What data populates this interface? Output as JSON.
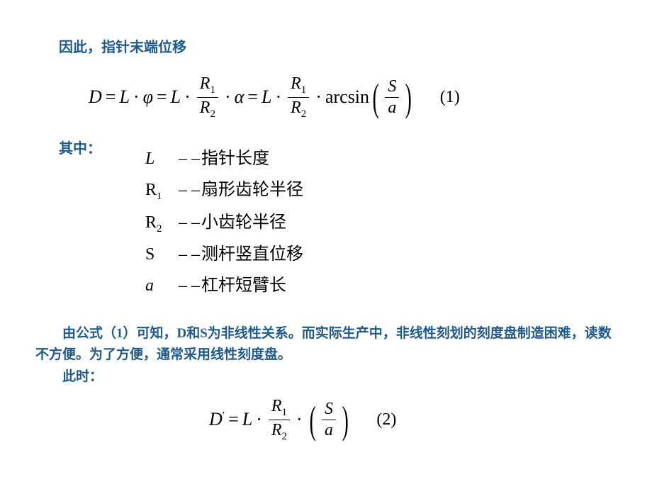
{
  "intro": "因此，指针末端位移",
  "eq1": {
    "D": "D",
    "eq": "=",
    "L": "L",
    "dot": "·",
    "phi": "φ",
    "alpha": "α",
    "R1": "R",
    "R2": "R",
    "sub1": "1",
    "sub2": "2",
    "arcsin": "arcsin",
    "S": "S",
    "a": "a",
    "num": "(1)"
  },
  "where": "其中：",
  "defs": {
    "L": {
      "var": "L",
      "text": "指针长度"
    },
    "R1": {
      "var": "R",
      "sub": "1",
      "text": "扇形齿轮半径"
    },
    "R2": {
      "var": "R",
      "sub": "2",
      "text": "小齿轮半径"
    },
    "S": {
      "var": "S",
      "text": "测杆竖直位移"
    },
    "a": {
      "var": "a",
      "text": "杠杆短臂长"
    },
    "dash": "– –"
  },
  "body1": "由公式（1）可知，D和S为非线性关系。而实际生产中，非线性刻划的刻度盘制造困难，读数不方便。为了方便，通常采用线性刻度盘。",
  "body2": "此时：",
  "eq2": {
    "Dp": "D",
    "prime": "′",
    "eq": "=",
    "L": "L",
    "dot": "·",
    "R1": "R",
    "R2": "R",
    "sub1": "1",
    "sub2": "2",
    "S": "S",
    "a": "a",
    "num": "(2)"
  }
}
